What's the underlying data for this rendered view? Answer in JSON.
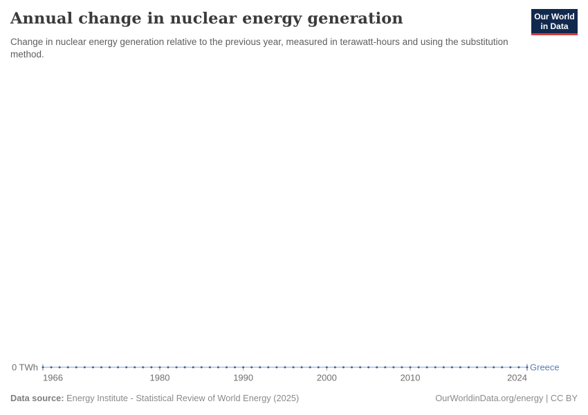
{
  "header": {
    "title": "Annual change in nuclear energy generation",
    "subtitle": "Change in nuclear energy generation relative to the previous year, measured in terawatt-hours and using the substitution method.",
    "logo": {
      "line1": "Our World",
      "line2": "in Data"
    }
  },
  "chart_data": {
    "type": "line",
    "title": "Annual change in nuclear energy generation",
    "ylabel": "",
    "xlabel": "",
    "y_axis_tick_label": "0 TWh",
    "ylim": [
      0,
      0
    ],
    "grid": false,
    "legend_position": "end-of-line",
    "x": [
      1966,
      1967,
      1968,
      1969,
      1970,
      1971,
      1972,
      1973,
      1974,
      1975,
      1976,
      1977,
      1978,
      1979,
      1980,
      1981,
      1982,
      1983,
      1984,
      1985,
      1986,
      1987,
      1988,
      1989,
      1990,
      1991,
      1992,
      1993,
      1994,
      1995,
      1996,
      1997,
      1998,
      1999,
      2000,
      2001,
      2002,
      2003,
      2004,
      2005,
      2006,
      2007,
      2008,
      2009,
      2010,
      2011,
      2012,
      2013,
      2014,
      2015,
      2016,
      2017,
      2018,
      2019,
      2020,
      2021,
      2022,
      2023,
      2024
    ],
    "x_ticks": [
      1966,
      1980,
      1990,
      2000,
      2010,
      2024
    ],
    "series": [
      {
        "name": "Greece",
        "unit": "TWh",
        "values": [
          0,
          0,
          0,
          0,
          0,
          0,
          0,
          0,
          0,
          0,
          0,
          0,
          0,
          0,
          0,
          0,
          0,
          0,
          0,
          0,
          0,
          0,
          0,
          0,
          0,
          0,
          0,
          0,
          0,
          0,
          0,
          0,
          0,
          0,
          0,
          0,
          0,
          0,
          0,
          0,
          0,
          0,
          0,
          0,
          0,
          0,
          0,
          0,
          0,
          0,
          0,
          0,
          0,
          0,
          0,
          0,
          0,
          0,
          0
        ]
      }
    ]
  },
  "footer": {
    "datasource_label": "Data source:",
    "datasource_text": " Energy Institute - Statistical Review of World Energy (2025)",
    "credit": "OurWorldinData.org/energy | CC BY"
  },
  "colors": {
    "series_point": "#3f5f96",
    "series_line": "#aec0dd",
    "entity_label": "#5b7fb5",
    "axis_text": "#6e6e6e",
    "axis_tick": "#a8a8a8",
    "start_cap": "#8a99af",
    "end_cap": "#5c7cb0",
    "logo_bg": "#12294e",
    "logo_red": "#d93a3f",
    "title_text": "#3b3b3b"
  }
}
